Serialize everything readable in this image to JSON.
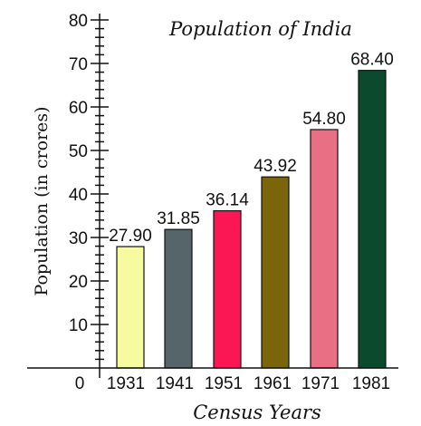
{
  "chart_data": {
    "type": "bar",
    "title": "Population of India",
    "xlabel": "Census Years",
    "ylabel": "Population (in crores)",
    "categories": [
      "1931",
      "1941",
      "1951",
      "1961",
      "1971",
      "1981"
    ],
    "values": [
      27.9,
      31.85,
      36.14,
      43.92,
      54.8,
      68.4
    ],
    "value_labels": [
      "27.90",
      "31.85",
      "36.14",
      "43.92",
      "54.80",
      "68.40"
    ],
    "colors": [
      "#f7fb9f",
      "#56656a",
      "#fb1654",
      "#7a650b",
      "#e86f84",
      "#0b4a2c"
    ],
    "ylim": [
      0,
      80
    ],
    "y_ticks": [
      10,
      20,
      30,
      40,
      50,
      60,
      70,
      80
    ],
    "origin_label": "0",
    "grid": false,
    "legend": "none"
  }
}
